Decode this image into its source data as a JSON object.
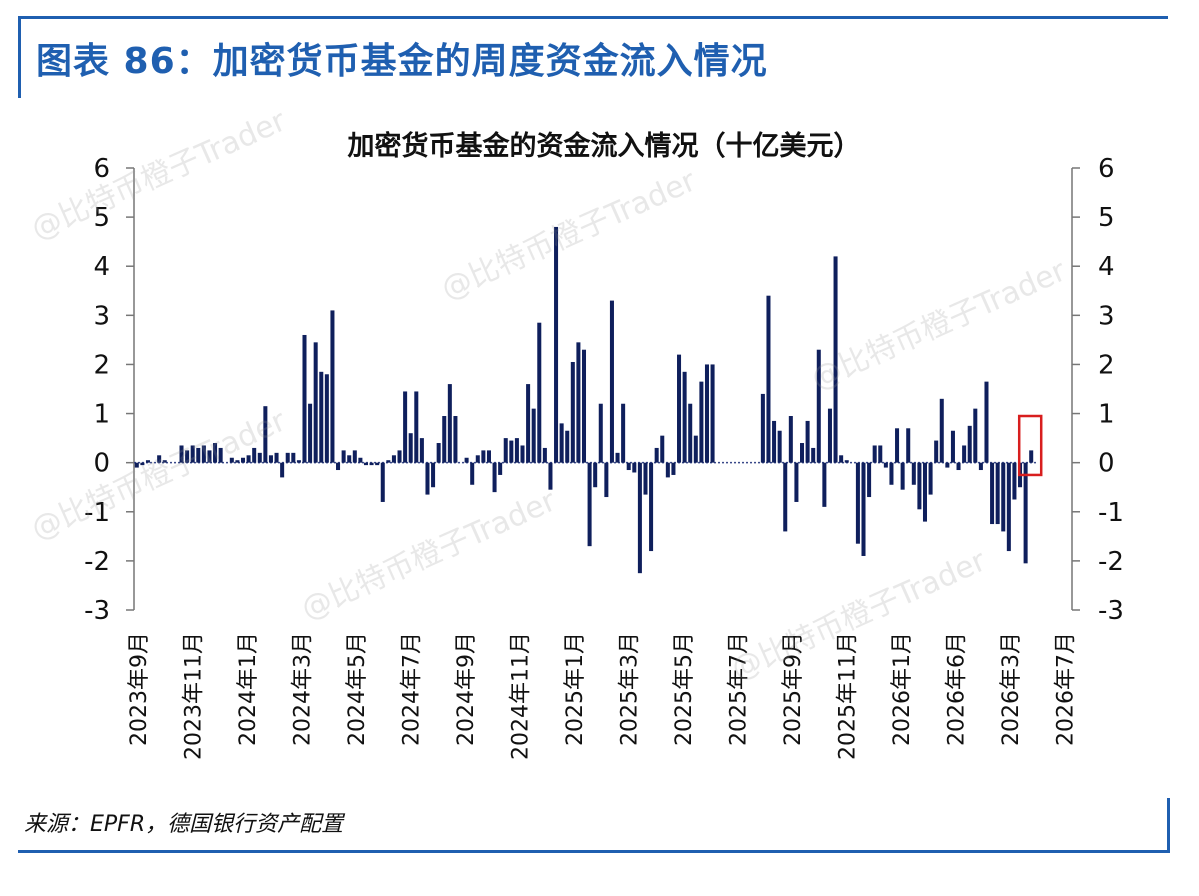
{
  "header": {
    "figure_title": "图表 86：加密货币基金的周度资金流入情况"
  },
  "footer": {
    "source": "来源：EPFR，德国银行资产配置"
  },
  "watermark": "@比特币橙子Trader",
  "colors": {
    "bar": "#0f1f5c",
    "frame": "#1f5fb0",
    "highlight_box": "#d81e1e",
    "axis": "#777777"
  },
  "chart_data": {
    "type": "bar",
    "title": "加密货币基金的资金流入情况（十亿美元）",
    "ylim": [
      -3,
      6
    ],
    "yticks": [
      "6",
      "5",
      "4",
      "3",
      "2",
      "1",
      "0",
      "-1",
      "-2",
      "-3"
    ],
    "ytick_values": [
      6,
      5,
      4,
      3,
      2,
      1,
      0,
      -1,
      -2,
      -3
    ],
    "y_axis_both_sides": true,
    "grid": false,
    "x_tick_labels": [
      "2023年9月",
      "2023年11月",
      "2024年1月",
      "2024年3月",
      "2024年5月",
      "2024年7月",
      "2024年9月",
      "2024年11月",
      "2025年1月",
      "2025年3月",
      "2025年5月",
      "2025年7月",
      "2025年9月",
      "2025年11月",
      "2026年1月",
      "2026年6月",
      "2026年3月",
      "2026年7月"
    ],
    "values": [
      -0.1,
      -0.05,
      0.05,
      0.0,
      0.15,
      0.05,
      0.0,
      0.0,
      0.35,
      0.25,
      0.35,
      0.3,
      0.35,
      0.25,
      0.4,
      0.3,
      0.0,
      0.1,
      0.05,
      0.1,
      0.15,
      0.3,
      0.2,
      1.15,
      0.15,
      0.2,
      -0.3,
      0.2,
      0.2,
      0.05,
      2.6,
      1.2,
      2.45,
      1.85,
      1.8,
      3.1,
      -0.15,
      0.25,
      0.15,
      0.25,
      0.1,
      -0.05,
      -0.05,
      -0.05,
      -0.8,
      0.05,
      0.15,
      0.25,
      1.45,
      0.6,
      1.45,
      0.5,
      -0.65,
      -0.5,
      0.4,
      0.95,
      1.6,
      0.95,
      0.0,
      0.1,
      -0.45,
      0.15,
      0.25,
      0.25,
      -0.6,
      -0.25,
      0.5,
      0.45,
      0.5,
      0.35,
      1.6,
      1.1,
      2.85,
      0.3,
      -0.55,
      4.8,
      0.8,
      0.65,
      2.05,
      2.45,
      2.3,
      -1.7,
      -0.5,
      1.2,
      -0.7,
      3.3,
      0.2,
      1.2,
      -0.15,
      -0.2,
      -2.25,
      -0.65,
      -1.8,
      0.3,
      0.55,
      -0.3,
      -0.25,
      2.2,
      1.85,
      1.2,
      0.55,
      1.65,
      2.0,
      2.0,
      0.0,
      0.0,
      0.0,
      0.0,
      0.0,
      0.0,
      0.0,
      0.0,
      1.4,
      3.4,
      0.85,
      0.65,
      -1.4,
      0.95,
      -0.8,
      0.4,
      0.85,
      0.3,
      2.3,
      -0.9,
      1.1,
      4.2,
      0.15,
      0.05,
      0.0,
      -1.65,
      -1.9,
      -0.7,
      0.35,
      0.35,
      -0.1,
      -0.45,
      0.7,
      -0.55,
      0.7,
      -0.45,
      -0.95,
      -1.2,
      -0.65,
      0.45,
      1.3,
      -0.1,
      0.65,
      -0.15,
      0.35,
      0.75,
      1.1,
      -0.15,
      1.65,
      -1.25,
      -1.25,
      -1.4,
      -1.8,
      -0.75,
      -0.5,
      -2.05,
      0.25
    ],
    "highlight_last": true
  }
}
